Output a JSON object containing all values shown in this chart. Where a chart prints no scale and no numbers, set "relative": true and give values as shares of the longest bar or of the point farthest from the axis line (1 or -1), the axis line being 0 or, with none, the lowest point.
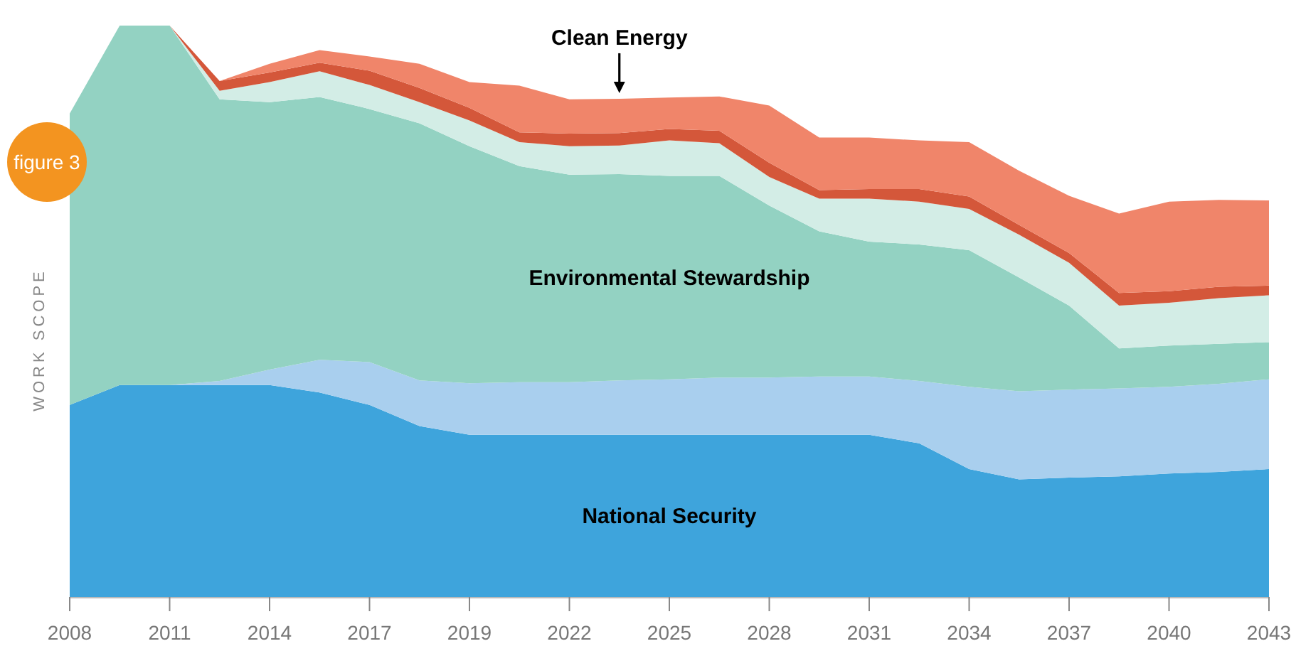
{
  "chart_data": {
    "type": "area",
    "stacked": true,
    "relative": true,
    "ylabel": "WORK SCOPE",
    "legend": false,
    "annotations": [
      "figure 3"
    ],
    "categories": [
      "2008",
      null,
      "2011",
      null,
      "2014",
      null,
      "2017",
      null,
      "2019",
      null,
      "2022",
      null,
      "2025",
      null,
      "2028",
      null,
      "2031",
      null,
      "2034",
      null,
      "2037",
      null,
      "2040",
      null,
      "2043"
    ],
    "series": [
      {
        "name": "National Security",
        "color": "#3ea4dc",
        "values": [
          0.336,
          0.371,
          0.371,
          0.371,
          0.371,
          0.358,
          0.336,
          0.299,
          0.284,
          0.284,
          0.284,
          0.284,
          0.284,
          0.284,
          0.284,
          0.284,
          0.284,
          0.269,
          0.224,
          0.206,
          0.209,
          0.211,
          0.216,
          0.219,
          0.224
        ]
      },
      {
        "color": "#a9cfee",
        "values": [
          0,
          0,
          0,
          0.007,
          0.027,
          0.057,
          0.075,
          0.08,
          0.09,
          0.092,
          0.092,
          0.095,
          0.097,
          0.1,
          0.1,
          0.102,
          0.102,
          0.109,
          0.144,
          0.154,
          0.154,
          0.154,
          0.152,
          0.154,
          0.157
        ]
      },
      {
        "name": "Environmental Stewardship",
        "color": "#93d2c2",
        "values": [
          0.51,
          0.629,
          0.629,
          0.493,
          0.468,
          0.46,
          0.443,
          0.45,
          0.415,
          0.378,
          0.363,
          0.361,
          0.356,
          0.353,
          0.301,
          0.254,
          0.236,
          0.239,
          0.239,
          0.199,
          0.147,
          0.07,
          0.072,
          0.07,
          0.065
        ]
      },
      {
        "color": "#d3ede6",
        "values": [
          0,
          0,
          0,
          0.015,
          0.035,
          0.045,
          0.042,
          0.037,
          0.045,
          0.042,
          0.05,
          0.05,
          0.062,
          0.057,
          0.05,
          0.057,
          0.075,
          0.075,
          0.072,
          0.075,
          0.075,
          0.075,
          0.075,
          0.08,
          0.082
        ]
      },
      {
        "color": "#d4573a",
        "values": [
          0,
          0,
          0,
          0.017,
          0.017,
          0.015,
          0.025,
          0.025,
          0.022,
          0.017,
          0.022,
          0.022,
          0.02,
          0.022,
          0.025,
          0.015,
          0.017,
          0.022,
          0.022,
          0.017,
          0.017,
          0.022,
          0.02,
          0.02,
          0.017
        ]
      },
      {
        "name": "Clean Energy",
        "color": "#f0856a",
        "values": [
          0,
          0,
          0,
          0,
          0.015,
          0.022,
          0.025,
          0.042,
          0.045,
          0.082,
          0.06,
          0.06,
          0.055,
          0.06,
          0.1,
          0.092,
          0.09,
          0.085,
          0.095,
          0.095,
          0.1,
          0.139,
          0.157,
          0.152,
          0.149
        ]
      }
    ]
  }
}
